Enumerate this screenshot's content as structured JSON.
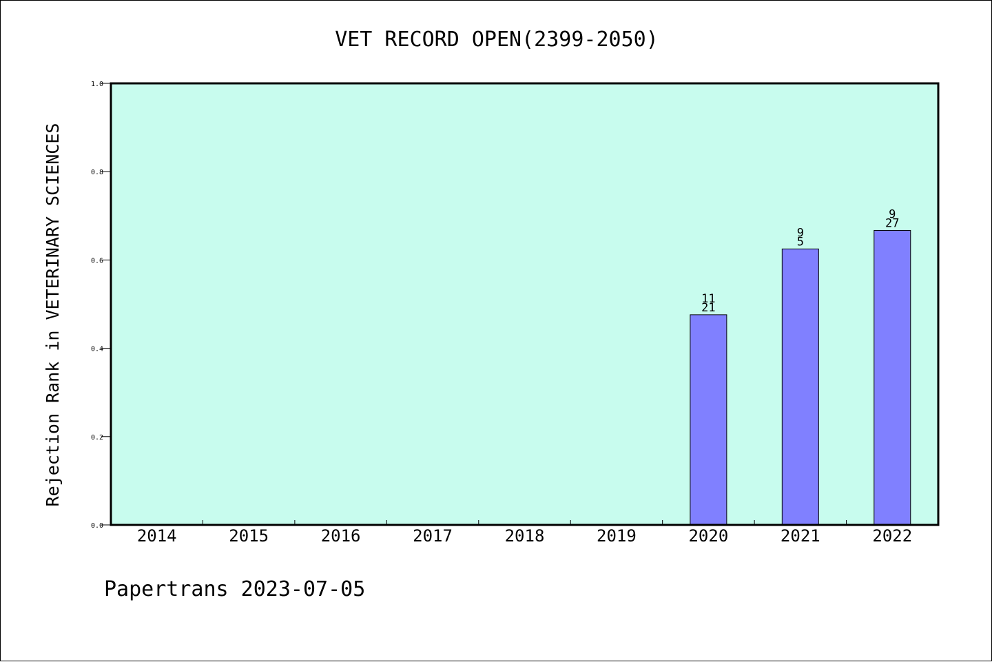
{
  "chart_data": {
    "type": "bar",
    "title": "VET RECORD OPEN(2399-2050)",
    "ylabel": "Rejection Rank in VETERINARY SCIENCES",
    "xlabel": "",
    "categories": [
      "2014",
      "2015",
      "2016",
      "2017",
      "2018",
      "2019",
      "2020",
      "2021",
      "2022"
    ],
    "values": [
      null,
      null,
      null,
      null,
      null,
      null,
      0.476,
      0.625,
      0.667
    ],
    "bar_labels": [
      null,
      null,
      null,
      null,
      null,
      null,
      {
        "top": "11",
        "bottom": "21"
      },
      {
        "top": "9",
        "bottom": "5"
      },
      {
        "top": "9",
        "bottom": "27"
      }
    ],
    "ylim": [
      0,
      1.0
    ],
    "yticks": [
      "0.0",
      "0.2",
      "0.4",
      "0.6",
      "0.8",
      "1.0"
    ],
    "grid": false,
    "plot_background": "#c8fcee",
    "bar_color": "#8080ff"
  },
  "footer": "Papertrans 2023-07-05"
}
